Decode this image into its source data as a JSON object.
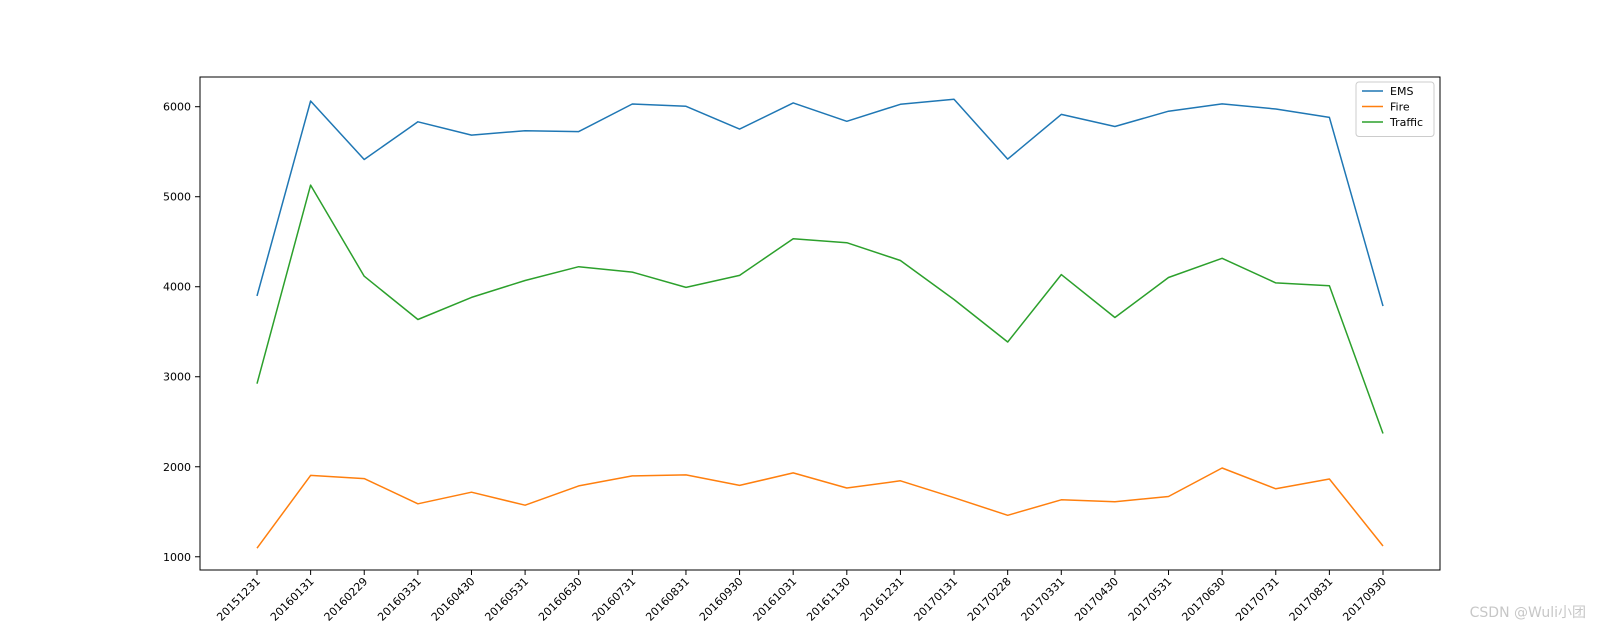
{
  "chart_data": {
    "type": "line",
    "x": [
      "20151231",
      "20160131",
      "20160229",
      "20160331",
      "20160430",
      "20160531",
      "20160630",
      "20160731",
      "20160831",
      "20160930",
      "20161031",
      "20161130",
      "20161231",
      "20170131",
      "20170228",
      "20170331",
      "20170430",
      "20170531",
      "20170630",
      "20170731",
      "20170831",
      "20170930"
    ],
    "series": [
      {
        "name": "EMS",
        "color": "#1f77b4",
        "values": [
          3898,
          6063,
          5413,
          5832,
          5685,
          5733,
          5723,
          6030,
          6005,
          5751,
          6042,
          5838,
          6027,
          6082,
          5418,
          5914,
          5780,
          5950,
          6031,
          5975,
          5881,
          3785
        ]
      },
      {
        "name": "Fire",
        "color": "#ff7f0e",
        "values": [
          1095,
          1904,
          1868,
          1589,
          1717,
          1573,
          1787,
          1898,
          1909,
          1793,
          1932,
          1764,
          1844,
          1656,
          1461,
          1633,
          1612,
          1669,
          1986,
          1755,
          1864,
          1120
        ]
      },
      {
        "name": "Traffic",
        "color": "#2ca02c",
        "values": [
          2923,
          5129,
          4117,
          3636,
          3882,
          4069,
          4223,
          4162,
          3992,
          4126,
          4534,
          4489,
          4291,
          3858,
          3386,
          4135,
          3658,
          4103,
          4316,
          4042,
          4010,
          2370
        ]
      }
    ],
    "yticks": [
      1000,
      2000,
      3000,
      4000,
      5000,
      6000
    ],
    "ylim": [
      853,
      6330
    ],
    "grid": false,
    "legend_position": "upper right",
    "title": "",
    "xlabel": "",
    "ylabel": ""
  },
  "watermark": "CSDN @Wuli小团"
}
